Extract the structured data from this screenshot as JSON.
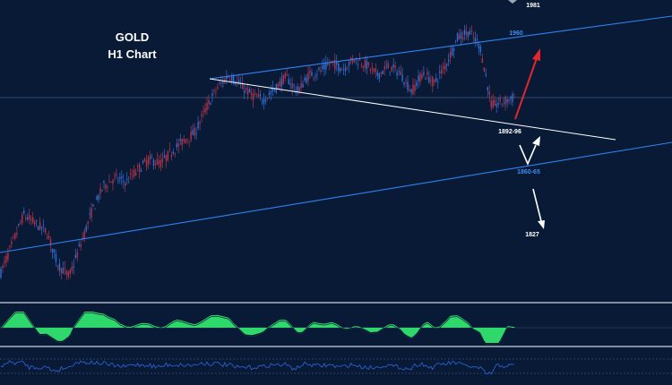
{
  "colors": {
    "background": "#081a35",
    "candle_up": "#2f6fd8",
    "candle_down": "#b2344b",
    "channel": "#2f83f0",
    "trendline": "#ffffff",
    "arrow_up": "#e3262f",
    "arrow": "#ffffff",
    "macd_fill": "#2fd86a",
    "rsi": "#2a5fd0",
    "separator": "#aab4c2"
  },
  "chart_data": {
    "type": "line",
    "title": "GOLD",
    "subtitle": "H1 Chart",
    "instrument": "GOLD",
    "timeframe": "H1",
    "price_series": [
      1848,
      1862,
      1876,
      1872,
      1868,
      1852,
      1846,
      1862,
      1878,
      1890,
      1894,
      1892,
      1898,
      1903,
      1901,
      1907,
      1912,
      1916,
      1928,
      1938,
      1944,
      1939,
      1934,
      1932,
      1937,
      1943,
      1936,
      1944,
      1946,
      1950,
      1947,
      1952,
      1949,
      1944,
      1948,
      1945,
      1936,
      1945,
      1940,
      1949,
      1962,
      1965,
      1958,
      1929,
      1931,
      1933
    ],
    "levels": [
      {
        "label": "1981",
        "value": 1981,
        "color": "white"
      },
      {
        "label": "1960",
        "value": 1960,
        "color": "blue"
      },
      {
        "label": "1892-96",
        "value": 1894,
        "color": "white"
      },
      {
        "label": "1860-65",
        "value": 1862.5,
        "color": "blue"
      },
      {
        "label": "1827",
        "value": 1827,
        "color": "white"
      }
    ],
    "annotations": [
      "ascending channel",
      "descending trendline",
      "bullish path arrow to 1981",
      "bearish path arrows via 1892-96 to 1860-65 and 1827"
    ]
  }
}
